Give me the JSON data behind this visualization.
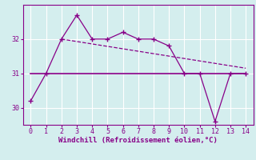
{
  "line1_x": [
    0,
    1,
    2,
    3,
    4,
    5,
    6,
    7,
    8,
    9,
    10,
    11,
    12,
    13,
    14
  ],
  "line1_y": [
    30.2,
    31.0,
    32.0,
    32.7,
    32.0,
    32.0,
    32.2,
    32.0,
    32.0,
    31.8,
    31.0,
    31.0,
    29.6,
    31.0,
    31.0
  ],
  "line2_x": [
    2,
    14
  ],
  "line2_y": [
    32.0,
    31.15
  ],
  "line3_x": [
    0,
    14
  ],
  "line3_y": [
    31.0,
    31.0
  ],
  "color": "#880088",
  "bg_color": "#d4eeee",
  "xlabel": "Windchill (Refroidissement éolien,°C)",
  "xlim": [
    -0.5,
    14.5
  ],
  "ylim": [
    29.5,
    33.0
  ],
  "yticks": [
    30,
    31,
    32
  ],
  "xticks": [
    0,
    1,
    2,
    3,
    4,
    5,
    6,
    7,
    8,
    9,
    10,
    11,
    12,
    13,
    14
  ],
  "grid_color": "#ffffff",
  "marker": "+",
  "lw1": 0.9,
  "lw2": 0.9,
  "lw3": 1.2
}
